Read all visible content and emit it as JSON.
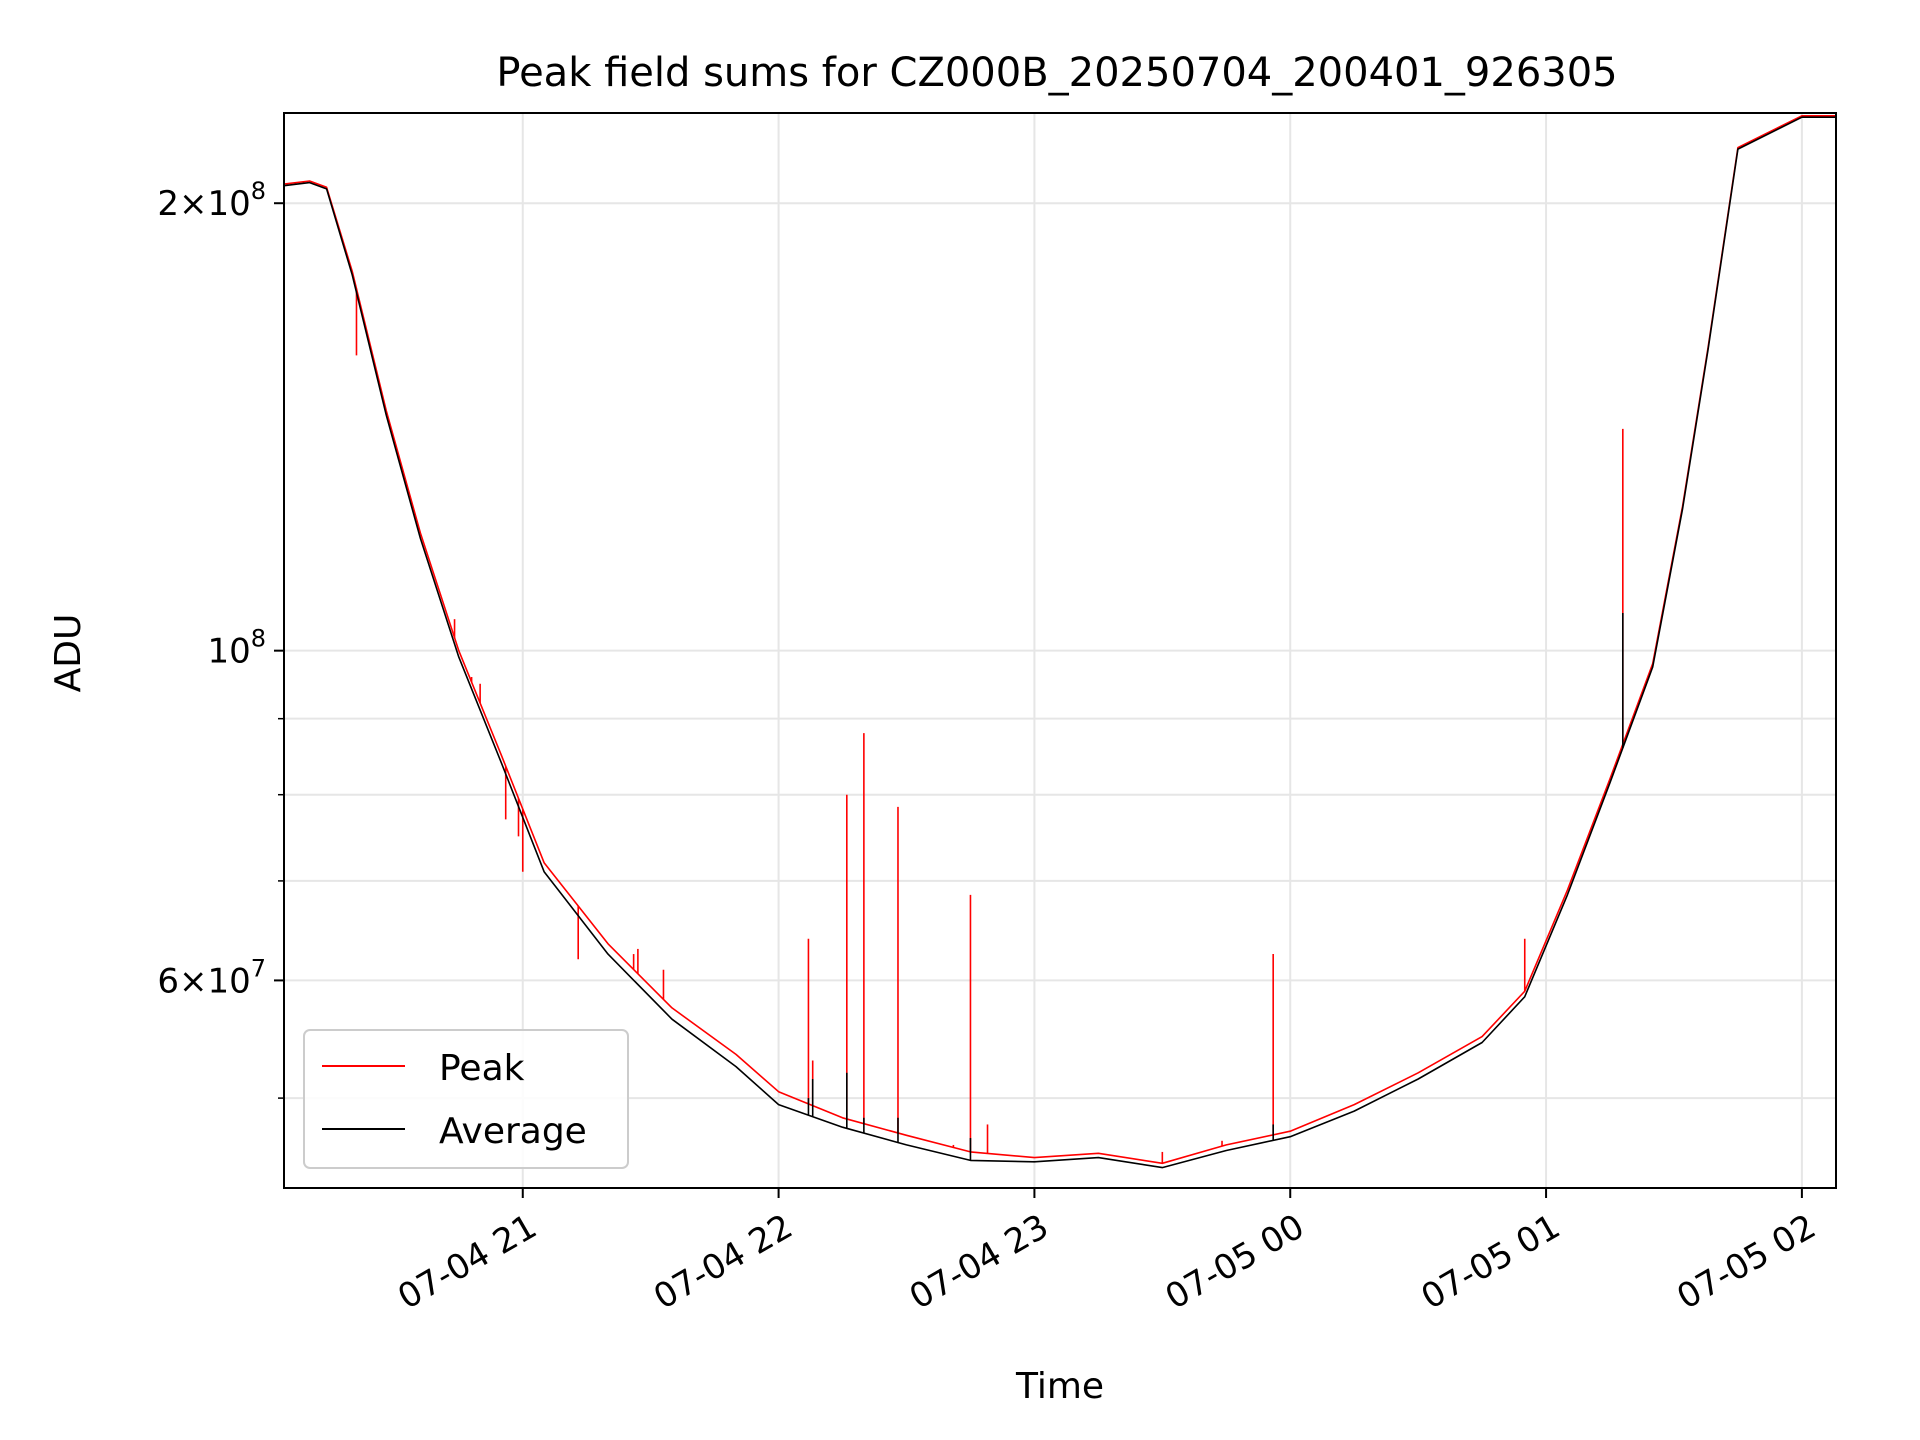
{
  "chart_data": {
    "type": "line",
    "title": "Peak field sums for CZ000B_20250704_200401_926305",
    "xlabel": "Time",
    "ylabel": "ADU",
    "yscale": "log",
    "grid": true,
    "legend_position": "lower-left",
    "xlim": [
      "2025-07-04 20:04",
      "2025-07-05 02:08"
    ],
    "ylim": [
      43500000,
      230000000
    ],
    "x_ticks": [
      {
        "t": "2025-07-04 21:00",
        "label": "07-04 21"
      },
      {
        "t": "2025-07-04 22:00",
        "label": "07-04 22"
      },
      {
        "t": "2025-07-04 23:00",
        "label": "07-04 23"
      },
      {
        "t": "2025-07-05 00:00",
        "label": "07-05 00"
      },
      {
        "t": "2025-07-05 01:00",
        "label": "07-05 01"
      },
      {
        "t": "2025-07-05 02:00",
        "label": "07-05 02"
      }
    ],
    "y_ticks_major": [
      {
        "value": 200000000,
        "base": "2×10",
        "exp": "8"
      },
      {
        "value": 100000000,
        "base": "10",
        "exp": "8"
      },
      {
        "value": 60000000,
        "base": "6×10",
        "exp": "7"
      }
    ],
    "y_ticks_minor": [
      50000000,
      70000000,
      80000000,
      90000000
    ],
    "series": [
      {
        "name": "Peak",
        "color": "#ff0000",
        "x": [
          "2025-07-04 20:04",
          "2025-07-04 20:10",
          "2025-07-04 20:14",
          "2025-07-04 20:20",
          "2025-07-04 20:28",
          "2025-07-04 20:36",
          "2025-07-04 20:45",
          "2025-07-04 20:55",
          "2025-07-04 21:05",
          "2025-07-04 21:20",
          "2025-07-04 21:35",
          "2025-07-04 21:50",
          "2025-07-04 22:00",
          "2025-07-04 22:15",
          "2025-07-04 22:30",
          "2025-07-04 22:45",
          "2025-07-04 23:00",
          "2025-07-04 23:15",
          "2025-07-04 23:30",
          "2025-07-04 23:45",
          "2025-07-05 00:00",
          "2025-07-05 00:15",
          "2025-07-05 00:30",
          "2025-07-05 00:45",
          "2025-07-05 00:55",
          "2025-07-05 01:05",
          "2025-07-05 01:15",
          "2025-07-05 01:25",
          "2025-07-05 01:32",
          "2025-07-05 01:38",
          "2025-07-05 01:45",
          "2025-07-05 02:00",
          "2025-07-05 02:08"
        ],
        "values": [
          206000000,
          207000000,
          205000000,
          180000000,
          145000000,
          120000000,
          100000000,
          85000000,
          72000000,
          63500000,
          57500000,
          53500000,
          50500000,
          48500000,
          47200000,
          46000000,
          45600000,
          45900000,
          45200000,
          46500000,
          47500000,
          49500000,
          52000000,
          55000000,
          59000000,
          69000000,
          82000000,
          98000000,
          125000000,
          160000000,
          218000000,
          229000000,
          229000000
        ],
        "spikes": [
          {
            "t": "2025-07-04 20:21",
            "value": 158000000
          },
          {
            "t": "2025-07-04 20:44",
            "value": 105000000
          },
          {
            "t": "2025-07-04 20:48",
            "value": 96000000
          },
          {
            "t": "2025-07-04 20:50",
            "value": 95000000
          },
          {
            "t": "2025-07-04 20:56",
            "value": 77000000
          },
          {
            "t": "2025-07-04 20:59",
            "value": 75000000
          },
          {
            "t": "2025-07-04 21:00",
            "value": 71000000
          },
          {
            "t": "2025-07-04 21:13",
            "value": 62000000
          },
          {
            "t": "2025-07-04 21:26",
            "value": 62500000
          },
          {
            "t": "2025-07-04 21:27",
            "value": 63000000
          },
          {
            "t": "2025-07-04 21:33",
            "value": 61000000
          },
          {
            "t": "2025-07-04 22:07",
            "value": 64000000
          },
          {
            "t": "2025-07-04 22:08",
            "value": 53000000
          },
          {
            "t": "2025-07-04 22:16",
            "value": 80000000
          },
          {
            "t": "2025-07-04 22:20",
            "value": 88000000
          },
          {
            "t": "2025-07-04 22:28",
            "value": 78500000
          },
          {
            "t": "2025-07-04 22:41",
            "value": 46500000
          },
          {
            "t": "2025-07-04 22:45",
            "value": 68500000
          },
          {
            "t": "2025-07-04 22:49",
            "value": 48000000
          },
          {
            "t": "2025-07-04 23:30",
            "value": 46000000
          },
          {
            "t": "2025-07-04 23:44",
            "value": 46800000
          },
          {
            "t": "2025-07-04 23:56",
            "value": 62500000
          },
          {
            "t": "2025-07-05 00:55",
            "value": 64000000
          },
          {
            "t": "2025-07-05 01:18",
            "value": 141000000
          }
        ]
      },
      {
        "name": "Average",
        "color": "#000000",
        "x": [
          "2025-07-04 20:04",
          "2025-07-04 20:10",
          "2025-07-04 20:14",
          "2025-07-04 20:20",
          "2025-07-04 20:28",
          "2025-07-04 20:36",
          "2025-07-04 20:45",
          "2025-07-04 20:55",
          "2025-07-04 21:05",
          "2025-07-04 21:20",
          "2025-07-04 21:35",
          "2025-07-04 21:50",
          "2025-07-04 22:00",
          "2025-07-04 22:15",
          "2025-07-04 22:30",
          "2025-07-04 22:45",
          "2025-07-04 23:00",
          "2025-07-04 23:15",
          "2025-07-04 23:30",
          "2025-07-04 23:45",
          "2025-07-05 00:00",
          "2025-07-05 00:15",
          "2025-07-05 00:30",
          "2025-07-05 00:45",
          "2025-07-05 00:55",
          "2025-07-05 01:05",
          "2025-07-05 01:15",
          "2025-07-05 01:25",
          "2025-07-05 01:32",
          "2025-07-05 01:38",
          "2025-07-05 01:45",
          "2025-07-05 02:00",
          "2025-07-05 02:08"
        ],
        "values": [
          205500000,
          206500000,
          204500000,
          179000000,
          144000000,
          119000000,
          99000000,
          84000000,
          71000000,
          62500000,
          56500000,
          52500000,
          49500000,
          47800000,
          46500000,
          45400000,
          45300000,
          45600000,
          44900000,
          46100000,
          47100000,
          49000000,
          51500000,
          54500000,
          58500000,
          68500000,
          81500000,
          97500000,
          124500000,
          159500000,
          217500000,
          228500000,
          228500000
        ],
        "spikes": [
          {
            "t": "2025-07-04 22:07",
            "value": 50000000
          },
          {
            "t": "2025-07-04 22:08",
            "value": 51500000
          },
          {
            "t": "2025-07-04 22:16",
            "value": 52000000
          },
          {
            "t": "2025-07-04 22:20",
            "value": 48500000
          },
          {
            "t": "2025-07-04 22:28",
            "value": 48500000
          },
          {
            "t": "2025-07-04 22:45",
            "value": 47000000
          },
          {
            "t": "2025-07-04 23:56",
            "value": 48000000
          },
          {
            "t": "2025-07-05 01:18",
            "value": 106000000
          }
        ]
      }
    ]
  }
}
